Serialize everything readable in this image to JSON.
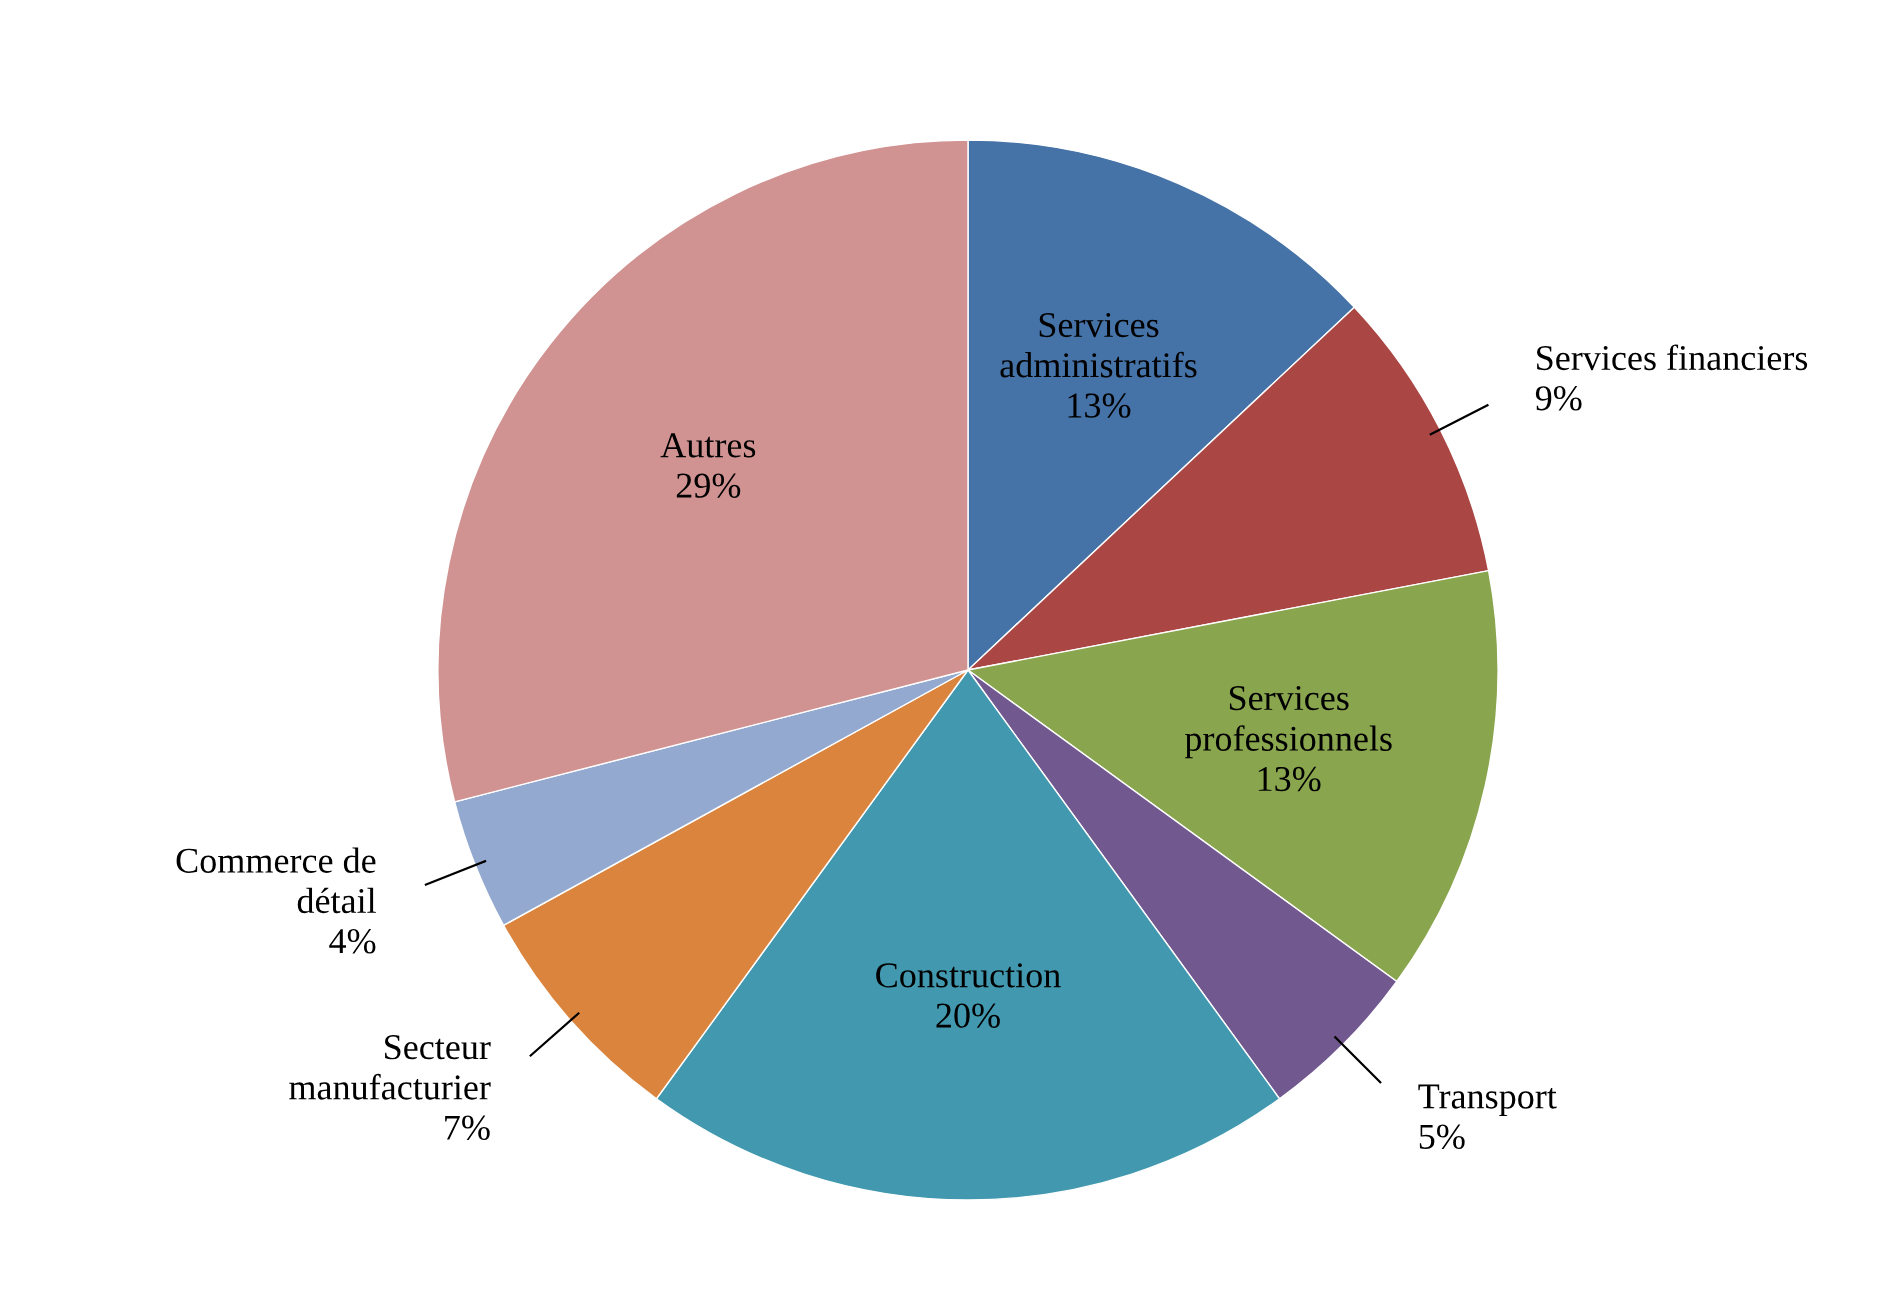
{
  "chart_data": {
    "type": "pie",
    "categories": [
      "Services\nadministratifs",
      "Services financiers",
      "Services\nprofessionnels",
      "Transport",
      "Construction",
      "Secteur\nmanufacturier",
      "Commerce de\ndétail",
      "Autres"
    ],
    "values": [
      13,
      9,
      13,
      5,
      20,
      7,
      4,
      29
    ],
    "value_labels": [
      "13%",
      "9%",
      "13%",
      "5%",
      "20%",
      "7%",
      "4%",
      "29%"
    ],
    "colors": [
      "#4572a7",
      "#aa4643",
      "#89a54e",
      "#71588f",
      "#4198af",
      "#db843d",
      "#93a9cf",
      "#d19392"
    ]
  }
}
